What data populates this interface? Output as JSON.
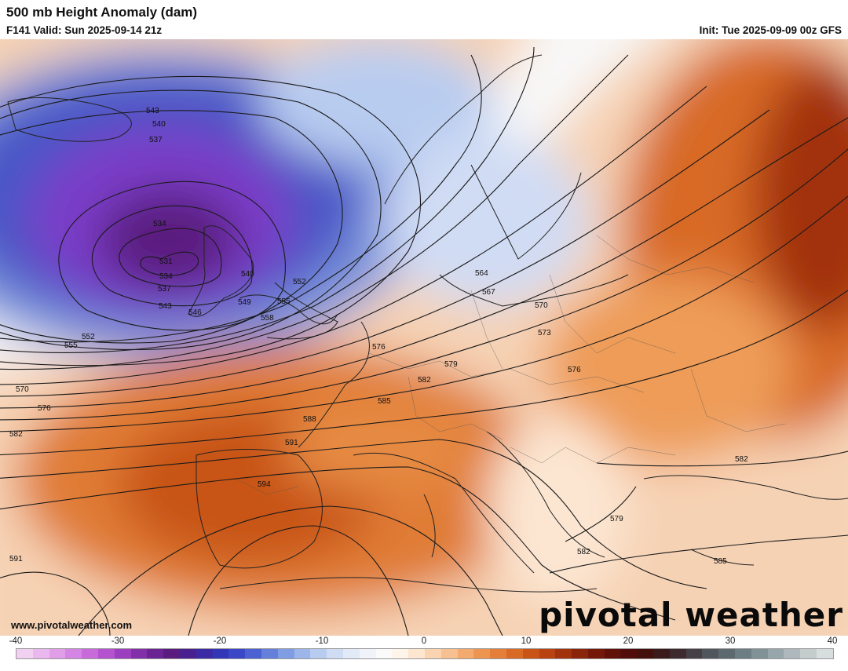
{
  "header": {
    "title": "500 mb Height Anomaly (dam)",
    "valid": "F141 Valid: Sun 2025-09-14 21z",
    "init": "Init: Tue 2025-09-09 00z GFS"
  },
  "footer": {
    "website": "www.pivotalweather.com",
    "brand": "pivotal weather"
  },
  "colorbar": {
    "ticks": [
      "-40",
      "-30",
      "-20",
      "-10",
      "0",
      "10",
      "20",
      "30",
      "40"
    ],
    "colors": [
      "#f2d0f2",
      "#eab8ee",
      "#e09ee8",
      "#d484e2",
      "#c86ada",
      "#b452cf",
      "#9c3ec0",
      "#8230aa",
      "#6a2494",
      "#5a1c7e",
      "#4a2090",
      "#3c2aa4",
      "#3436b8",
      "#3a48c8",
      "#4c62d2",
      "#6480da",
      "#809ce2",
      "#9cb6ea",
      "#b8ccf0",
      "#d0dcf4",
      "#e2eaf8",
      "#f0f4fa",
      "#fafafa",
      "#fff4ea",
      "#fde6d0",
      "#fad4b0",
      "#f6c090",
      "#f2aa6e",
      "#ec9450",
      "#e47e38",
      "#d86a26",
      "#ca5418",
      "#b84210",
      "#a2320c",
      "#8a240a",
      "#74180a",
      "#62100a",
      "#520c0c",
      "#44100e",
      "#3a1a1a",
      "#3c2a2e",
      "#444046",
      "#50565c",
      "#5c6a70",
      "#6c7e84",
      "#809296",
      "#96a6aa",
      "#aeb8bc",
      "#c4cccc",
      "#d8dede"
    ]
  },
  "contours": [
    {
      "label": "543"
    },
    {
      "label": "540"
    },
    {
      "label": "537"
    },
    {
      "label": "534"
    },
    {
      "label": "531"
    },
    {
      "label": "534"
    },
    {
      "label": "537"
    },
    {
      "label": "543"
    },
    {
      "label": "546"
    },
    {
      "label": "549"
    },
    {
      "label": "540"
    },
    {
      "label": "552"
    },
    {
      "label": "555"
    },
    {
      "label": "558"
    },
    {
      "label": "552"
    },
    {
      "label": "555"
    },
    {
      "label": "570"
    },
    {
      "label": "576"
    },
    {
      "label": "582"
    },
    {
      "label": "564"
    },
    {
      "label": "567"
    },
    {
      "label": "570"
    },
    {
      "label": "573"
    },
    {
      "label": "576"
    },
    {
      "label": "579"
    },
    {
      "label": "576"
    },
    {
      "label": "582"
    },
    {
      "label": "585"
    },
    {
      "label": "588"
    },
    {
      "label": "591"
    },
    {
      "label": "594"
    },
    {
      "label": "591"
    },
    {
      "label": "579"
    },
    {
      "label": "582"
    },
    {
      "label": "582"
    },
    {
      "label": "585"
    }
  ]
}
